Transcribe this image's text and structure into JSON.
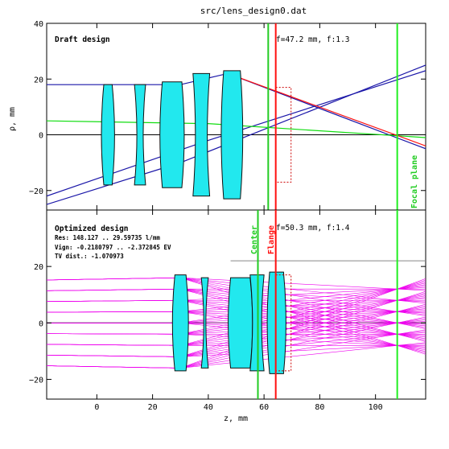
{
  "title": "src/lens_design0.dat",
  "colors": {
    "axis": "#000000",
    "lens_fill": "#22e8ee",
    "lens_stroke": "#111111",
    "draft_ray": "#1a16a8",
    "chief_ray_green": "#10dd10",
    "red_ray": "#ff1010",
    "optimized_ray": "#ee00ee",
    "flange": "#ff1010",
    "center": "#22cc22",
    "focal_plane": "#22ee22",
    "housing": "#cc0000",
    "image_sensor_line": "#888888"
  },
  "chart_data": [
    {
      "type": "line",
      "panel": "top",
      "label": "Draft design",
      "annotation": "f=47.2 mm, f:1.3",
      "ylabel": "ρ, mm",
      "xlim": [
        -18,
        118
      ],
      "ylim": [
        -27,
        40
      ],
      "yticks": [
        -20,
        0,
        20,
        40
      ],
      "xticks": [
        0,
        20,
        40,
        60,
        80,
        100
      ],
      "vertical_lines": [
        {
          "name": "center",
          "x": 61.5,
          "color": "#22cc22"
        },
        {
          "name": "flange",
          "x": 64.2,
          "color": "#ff1010"
        },
        {
          "name": "focal-plane",
          "x": 107.8,
          "color": "#22ee22",
          "label": "Focal plane"
        }
      ],
      "lenses": [
        {
          "front_x": 2.5,
          "back_x": 5.5,
          "semi": 18
        },
        {
          "front_x": 13.5,
          "back_x": 17.5,
          "semi": 18
        },
        {
          "front_x": 23.5,
          "back_x": 30.5,
          "semi": 19
        },
        {
          "front_x": 34.5,
          "back_x": 40.5,
          "semi": 22
        },
        {
          "front_x": 45.5,
          "back_x": 51.5,
          "semi": 23
        }
      ],
      "series": [
        {
          "color": "#1a16a8",
          "x": [
            -18,
            30,
            47,
            118
          ],
          "y": [
            18,
            18,
            22,
            -5
          ]
        },
        {
          "color": "#1a16a8",
          "x": [
            -18,
            40,
            118
          ],
          "y": [
            -22,
            -2,
            23
          ]
        },
        {
          "color": "#1a16a8",
          "x": [
            -18,
            30,
            118
          ],
          "y": [
            -25,
            -10,
            25
          ]
        },
        {
          "color": "#10dd10",
          "x": [
            -18,
            40,
            118
          ],
          "y": [
            5,
            4,
            -1
          ]
        },
        {
          "color": "#ff1010",
          "x": [
            47,
            118
          ],
          "y": [
            22,
            -4
          ]
        }
      ]
    },
    {
      "type": "line",
      "panel": "bottom",
      "label": "Optimized design",
      "annotation": "f=50.3 mm, f:1.4",
      "info": [
        "Res: 148.127 .. 29.59735 l/mm",
        "Vign: -0.2180797 .. -2.372845 EV",
        "TV dist.: -1.070973"
      ],
      "xlabel": "z, mm",
      "xlim": [
        -18,
        118
      ],
      "ylim": [
        -27,
        40
      ],
      "yticks": [
        -20,
        0,
        20
      ],
      "xticks": [
        0,
        20,
        40,
        60,
        80,
        100
      ],
      "vertical_lines": [
        {
          "name": "center",
          "x": 57.8,
          "color": "#22cc22",
          "label": "Center"
        },
        {
          "name": "flange",
          "x": 64.2,
          "color": "#ff1010",
          "label": "Flange"
        },
        {
          "name": "focal-plane",
          "x": 107.8,
          "color": "#22ee22"
        }
      ],
      "lenses": [
        {
          "front_x": 28,
          "back_x": 32,
          "semi": 17
        },
        {
          "front_x": 37.5,
          "back_x": 40,
          "semi": 16
        },
        {
          "front_x": 48,
          "back_x": 55,
          "semi": 16
        },
        {
          "front_x": 55,
          "back_x": 60,
          "semi": 17
        },
        {
          "front_x": 62,
          "back_x": 67,
          "semi": 18
        }
      ],
      "ray_entry_y": [
        -16,
        -12,
        -8,
        -4,
        0,
        4,
        8,
        12,
        16
      ],
      "ray_focus_y": [
        -8,
        -4,
        0,
        4,
        8,
        12
      ]
    }
  ],
  "x_tick_labels": [
    "0",
    "20",
    "40",
    "60",
    "80",
    "100"
  ],
  "y_tick_labels_top": [
    "−20",
    "0",
    "20",
    "40"
  ],
  "y_tick_labels_bottom": [
    "−20",
    "0",
    "20"
  ]
}
